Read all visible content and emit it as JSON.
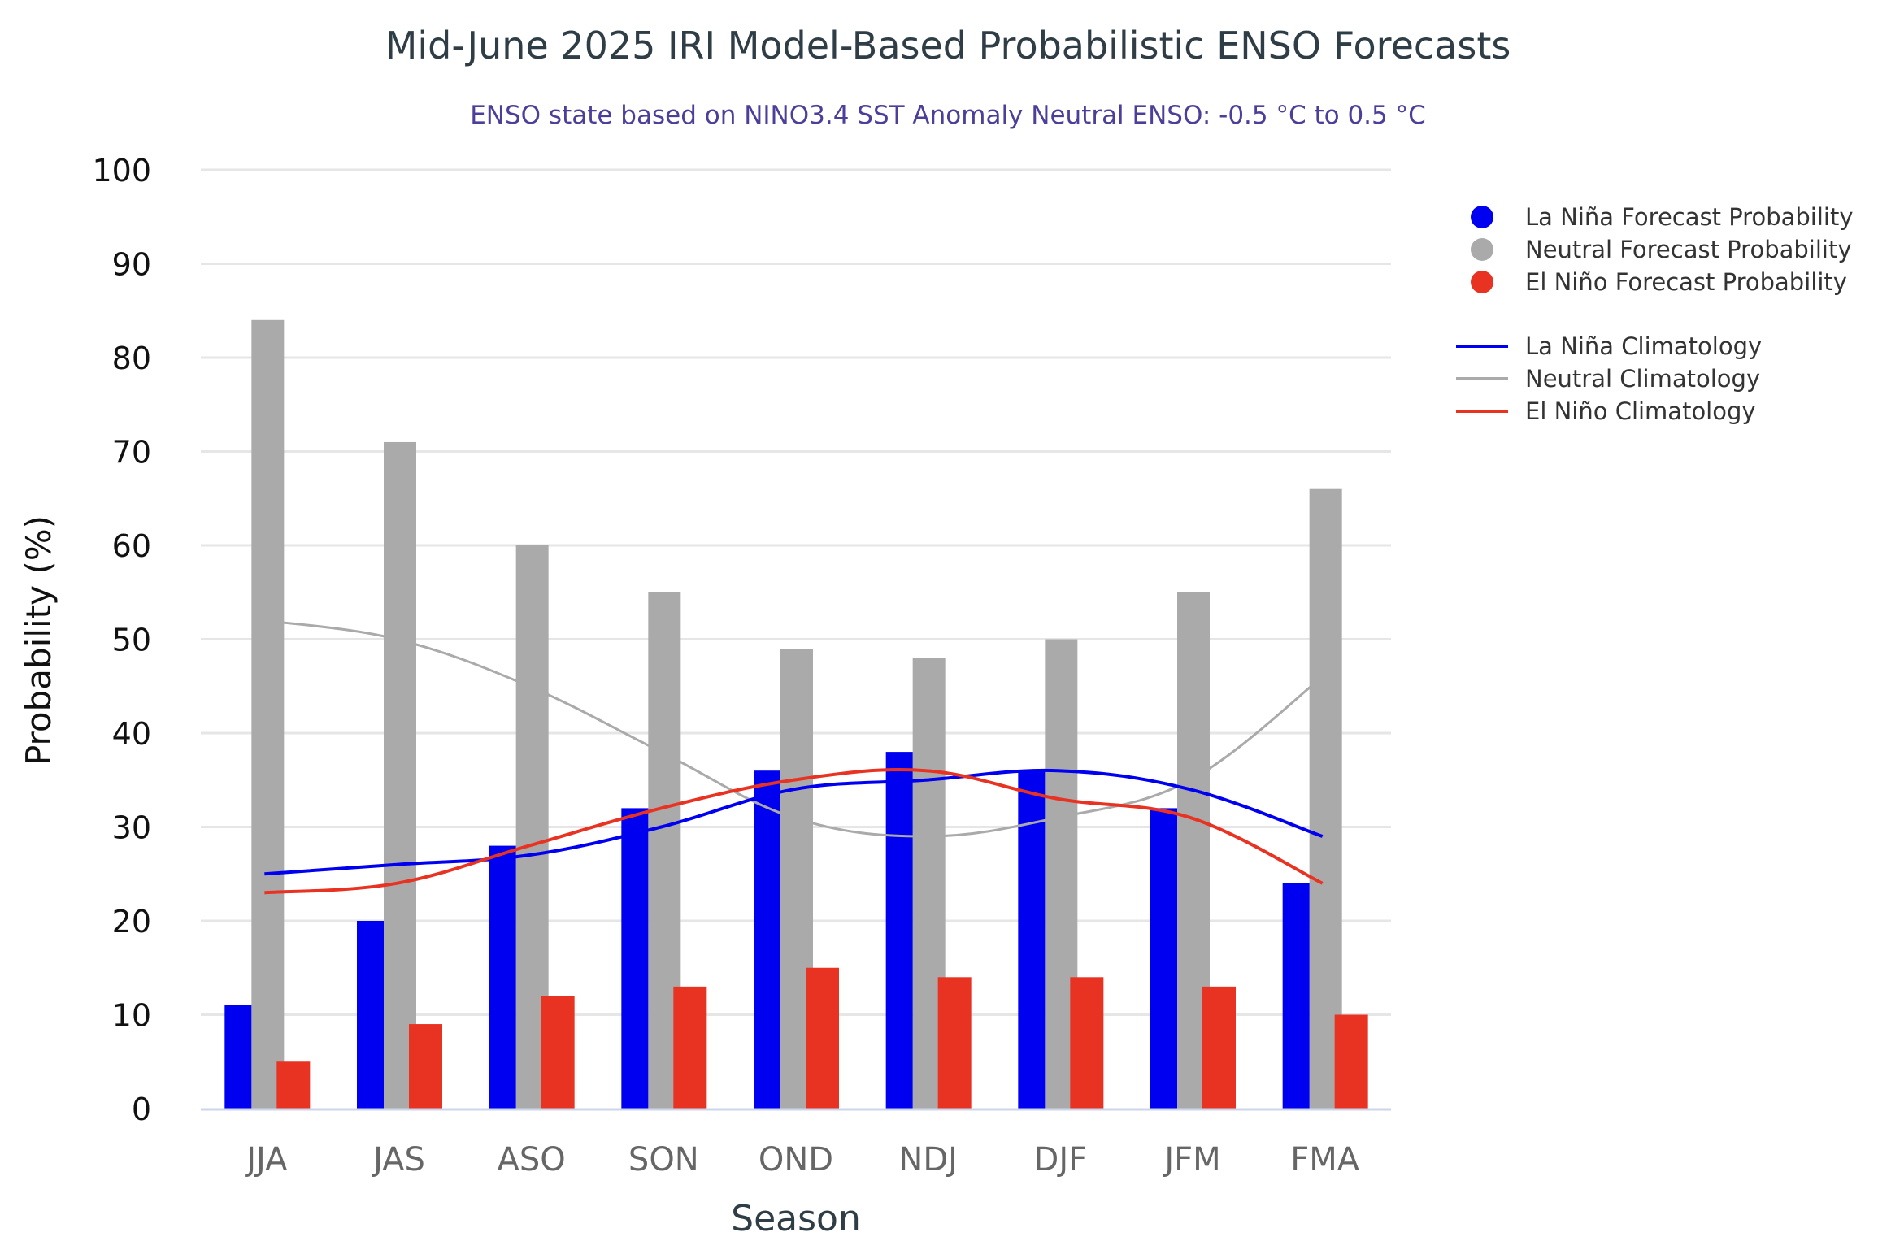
{
  "chart_data": {
    "type": "bar",
    "title": "Mid-June 2025 IRI Model-Based Probabilistic ENSO Forecasts",
    "subtitle": "ENSO state based on NINO3.4 SST Anomaly Neutral ENSO: -0.5 °C to 0.5 °C",
    "xlabel": "Season",
    "ylabel": "Probability (%)",
    "ylim": [
      0,
      100
    ],
    "yticks": [
      0,
      10,
      20,
      30,
      40,
      50,
      60,
      70,
      80,
      90,
      100
    ],
    "grid": true,
    "legend_position": "right",
    "categories": [
      "JJA",
      "JAS",
      "ASO",
      "SON",
      "OND",
      "NDJ",
      "DJF",
      "JFM",
      "FMA"
    ],
    "series": [
      {
        "name": "La Niña Forecast Probability",
        "kind": "bar",
        "color": "#0000f0",
        "values": [
          11,
          20,
          28,
          32,
          36,
          38,
          36,
          32,
          24
        ]
      },
      {
        "name": "Neutral Forecast Probability",
        "kind": "bar",
        "color": "#aaaaaa",
        "values": [
          84,
          71,
          60,
          55,
          49,
          48,
          50,
          55,
          66
        ]
      },
      {
        "name": "El Niño Forecast Probability",
        "kind": "bar",
        "color": "#e83323",
        "values": [
          5,
          9,
          12,
          13,
          15,
          14,
          14,
          13,
          10
        ]
      },
      {
        "name": "La Niña Climatology",
        "kind": "line",
        "color": "#0000f0",
        "values": [
          25,
          26,
          27,
          30,
          34,
          35,
          36,
          34,
          29
        ]
      },
      {
        "name": "Neutral Climatology",
        "kind": "line",
        "color": "#aaaaaa",
        "values": [
          52,
          50,
          45,
          38,
          31,
          29,
          31,
          35,
          46
        ]
      },
      {
        "name": "El Niño Climatology",
        "kind": "line",
        "color": "#e83323",
        "values": [
          23,
          24,
          28,
          32,
          35,
          36,
          33,
          31,
          24
        ]
      }
    ]
  }
}
